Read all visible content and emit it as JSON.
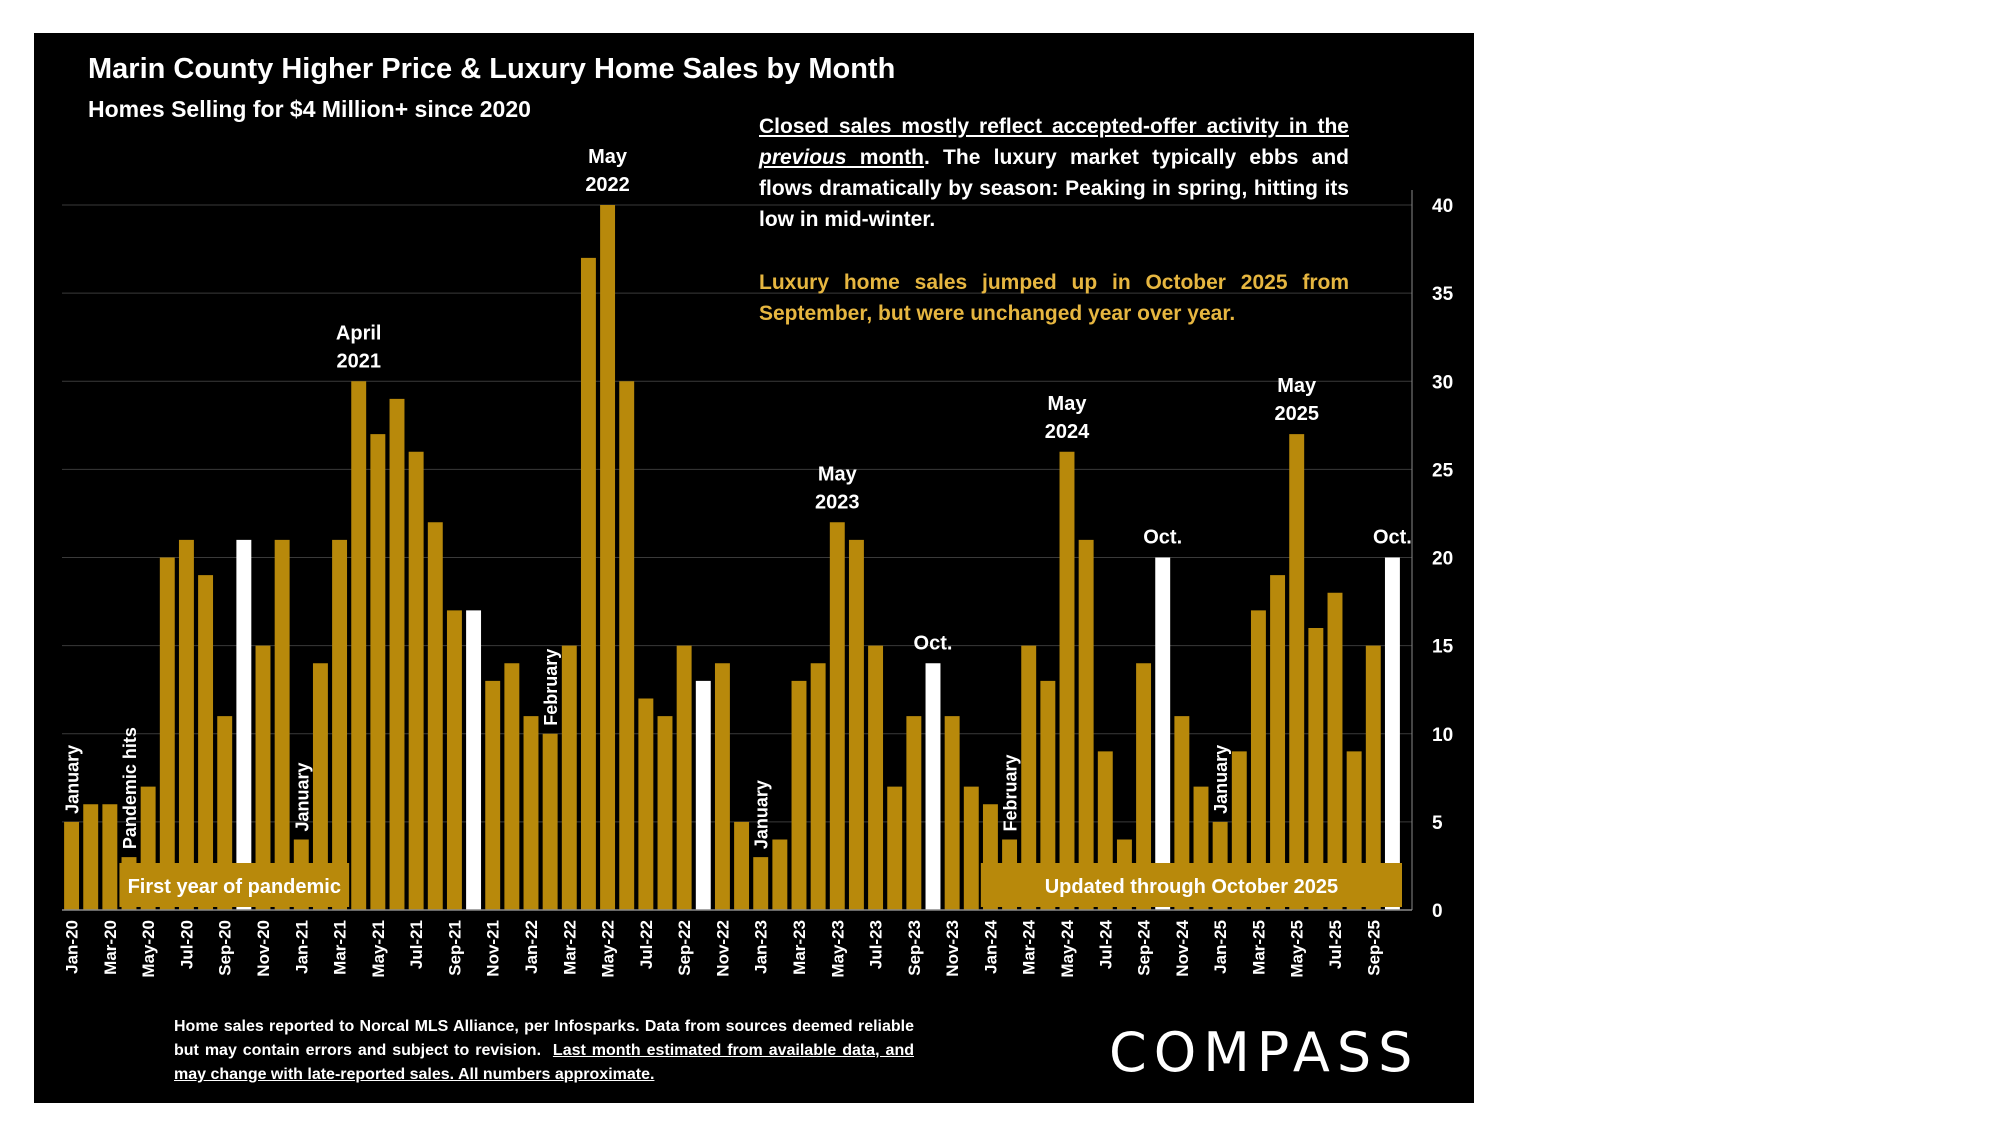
{
  "header": {
    "title": "Marin County Higher Price & Luxury Home Sales by Month",
    "subtitle": "Homes Selling for $4 Million+ since 2020"
  },
  "annotation": {
    "line1_underlined_a": "Closed sales mostly reflect accepted-offer activity in the ",
    "line1_underlined_italic": "previous",
    "line1_underlined_b": " month",
    "line1_rest": ". The luxury market typically ebbs and flows dramatically by season: Peaking in spring, hitting its low in mid-winter.",
    "highlight": "Luxury home sales jumped up in October 2025 from September, but were unchanged year over year."
  },
  "footer": {
    "plain": "Home sales reported to Norcal MLS Alliance, per Infosparks. Data from sources deemed reliable but may contain errors and subject to revision.",
    "underlined": "Last month estimated from available data, and may change with late-reported sales. All numbers approximate."
  },
  "brand": {
    "logo": "COMPASS"
  },
  "colors": {
    "bar": "#b8890b",
    "highlight_bar": "#ffffff",
    "background": "#000000",
    "text_highlight": "#e6b640"
  },
  "chart_data": {
    "type": "bar",
    "title": "Marin County Higher Price & Luxury Home Sales by Month",
    "subtitle": "Homes Selling for $4 Million+ since 2020",
    "ylim": [
      0,
      40
    ],
    "y_ticks": [
      0,
      5,
      10,
      15,
      20,
      25,
      30,
      35,
      40
    ],
    "y_axis_side": "right",
    "grid": true,
    "categories": [
      "Jan-20",
      "Feb-20",
      "Mar-20",
      "Apr-20",
      "May-20",
      "Jun-20",
      "Jul-20",
      "Aug-20",
      "Sep-20",
      "Oct-20",
      "Nov-20",
      "Dec-20",
      "Jan-21",
      "Feb-21",
      "Mar-21",
      "Apr-21",
      "May-21",
      "Jun-21",
      "Jul-21",
      "Aug-21",
      "Sep-21",
      "Oct-21",
      "Nov-21",
      "Dec-21",
      "Jan-22",
      "Feb-22",
      "Mar-22",
      "Apr-22",
      "May-22",
      "Jun-22",
      "Jul-22",
      "Aug-22",
      "Sep-22",
      "Oct-22",
      "Nov-22",
      "Dec-22",
      "Jan-23",
      "Feb-23",
      "Mar-23",
      "Apr-23",
      "May-23",
      "Jun-23",
      "Jul-23",
      "Aug-23",
      "Sep-23",
      "Oct-23",
      "Nov-23",
      "Dec-23",
      "Jan-24",
      "Feb-24",
      "Mar-24",
      "Apr-24",
      "May-24",
      "Jun-24",
      "Jul-24",
      "Aug-24",
      "Sep-24",
      "Oct-24",
      "Nov-24",
      "Dec-24",
      "Jan-25",
      "Feb-25",
      "Mar-25",
      "Apr-25",
      "May-25",
      "Jun-25",
      "Jul-25",
      "Aug-25",
      "Sep-25",
      "Oct-25"
    ],
    "values": [
      5,
      6,
      6,
      3,
      7,
      20,
      21,
      19,
      11,
      21,
      15,
      21,
      4,
      14,
      21,
      30,
      27,
      29,
      26,
      22,
      17,
      17,
      13,
      14,
      11,
      10,
      15,
      37,
      40,
      30,
      12,
      11,
      15,
      13,
      14,
      5,
      3,
      4,
      13,
      14,
      22,
      21,
      15,
      7,
      11,
      14,
      11,
      7,
      6,
      4,
      15,
      13,
      26,
      21,
      9,
      4,
      14,
      20,
      11,
      7,
      5,
      9,
      17,
      19,
      27,
      16,
      18,
      9,
      15,
      20
    ],
    "highlight_indices": [
      9,
      21,
      33,
      45,
      57,
      69
    ],
    "tick_labels": [
      "Jan-20",
      "Mar-20",
      "May-20",
      "Jul-20",
      "Sep-20",
      "Nov-20",
      "Jan-21",
      "Mar-21",
      "May-21",
      "Jul-21",
      "Sep-21",
      "Nov-21",
      "Jan-22",
      "Mar-22",
      "May-22",
      "Jul-22",
      "Sep-22",
      "Nov-22",
      "Jan-23",
      "Mar-23",
      "May-23",
      "Jul-23",
      "Sep-23",
      "Nov-23",
      "Jan-24",
      "Mar-24",
      "May-24",
      "Jul-24",
      "Sep-24",
      "Nov-24",
      "Jan-25",
      "Mar-25",
      "May-25",
      "Jul-25",
      "Sep-25"
    ],
    "peak_labels": [
      {
        "index": 15,
        "lines": [
          "April",
          "2021"
        ]
      },
      {
        "index": 28,
        "lines": [
          "May",
          "2022"
        ]
      },
      {
        "index": 40,
        "lines": [
          "May",
          "2023"
        ]
      },
      {
        "index": 52,
        "lines": [
          "May",
          "2024"
        ]
      },
      {
        "index": 64,
        "lines": [
          "May",
          "2025"
        ]
      },
      {
        "index": 45,
        "lines": [
          "Oct."
        ]
      },
      {
        "index": 57,
        "lines": [
          "Oct."
        ]
      },
      {
        "index": 69,
        "lines": [
          "Oct."
        ]
      }
    ],
    "vertical_labels": [
      {
        "index": 0,
        "text": "January"
      },
      {
        "index": 3,
        "text": "Pandemic hits"
      },
      {
        "index": 12,
        "text": "January"
      },
      {
        "index": 25,
        "text": "February"
      },
      {
        "index": 36,
        "text": "January"
      },
      {
        "index": 49,
        "text": "February"
      },
      {
        "index": 60,
        "text": "January"
      }
    ],
    "bands": [
      {
        "from": 3,
        "to": 15,
        "text": "First year of pandemic"
      },
      {
        "from": 48,
        "to": 70,
        "text": "Updated through October 2025"
      }
    ]
  }
}
